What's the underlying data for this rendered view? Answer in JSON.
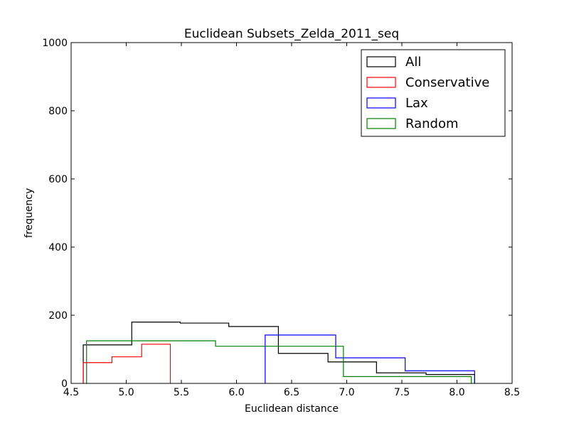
{
  "chart_data": {
    "type": "histogram",
    "title": "Euclidean Subsets_Zelda_2011_seq",
    "xlabel": "Euclidean distance",
    "ylabel": "frequency",
    "xlim": [
      4.5,
      8.5
    ],
    "ylim": [
      0,
      1000
    ],
    "xticks": [
      "4.5",
      "5.0",
      "5.5",
      "6.0",
      "6.5",
      "7.0",
      "7.5",
      "8.0",
      "8.5"
    ],
    "xtick_values": [
      4.5,
      5.0,
      5.5,
      6.0,
      6.5,
      7.0,
      7.5,
      8.0,
      8.5
    ],
    "yticks": [
      "0",
      "200",
      "400",
      "600",
      "800",
      "1000"
    ],
    "ytick_values": [
      0,
      200,
      400,
      600,
      800,
      1000
    ],
    "grid": false,
    "legend_position": "top-right",
    "series": [
      {
        "name": "All",
        "color": "#000000",
        "edges": [
          4.61,
          5.05,
          5.49,
          5.93,
          6.38,
          6.83,
          7.27,
          7.72,
          8.16
        ],
        "counts": [
          113,
          180,
          177,
          167,
          88,
          63,
          31,
          26
        ]
      },
      {
        "name": "Conservative",
        "color": "#ff0000",
        "edges": [
          4.61,
          4.87,
          5.14,
          5.4
        ],
        "counts": [
          61,
          78,
          115
        ]
      },
      {
        "name": "Lax",
        "color": "#0000ff",
        "edges": [
          6.26,
          6.9,
          7.53,
          8.16
        ],
        "counts": [
          142,
          75,
          37
        ]
      },
      {
        "name": "Random",
        "color": "#008000",
        "edges": [
          4.64,
          5.81,
          6.97,
          8.13
        ],
        "counts": [
          125,
          109,
          20
        ]
      }
    ]
  }
}
